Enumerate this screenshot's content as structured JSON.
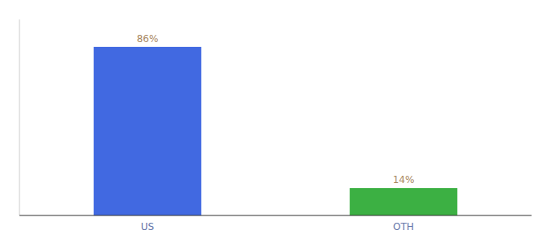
{
  "chart_data": {
    "type": "bar",
    "categories": [
      "US",
      "OTH"
    ],
    "values": [
      86,
      14
    ],
    "value_labels": [
      "86%",
      "14%"
    ],
    "data_labels": true,
    "colors": [
      "#4169E1",
      "#3CB043"
    ],
    "ylim": [
      0,
      100
    ],
    "yticks": [],
    "tick_labels": "x",
    "grid": false
  }
}
